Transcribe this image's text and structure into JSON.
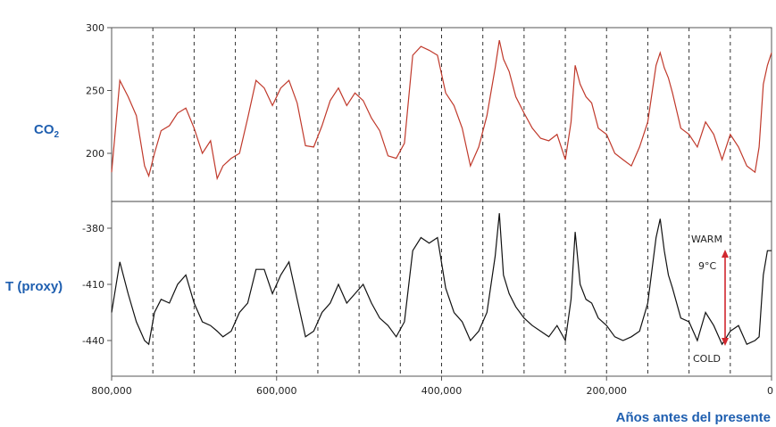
{
  "chart_data": [
    {
      "type": "line",
      "ylabel": "CO",
      "ylabel_sub": "2",
      "ylim": [
        170,
        300
      ],
      "yticks": [
        200,
        250,
        300
      ],
      "xlim": [
        800000,
        0
      ],
      "grid": "vertical dashed lines every 50,000 years",
      "color": "#c0392b",
      "series": [
        {
          "x": [
            800000,
            790000,
            780000,
            770000,
            760000,
            755000,
            748000,
            740000,
            730000,
            720000,
            710000,
            700000,
            690000,
            680000,
            672000,
            665000,
            655000,
            645000,
            635000,
            625000,
            615000,
            605000,
            595000,
            585000,
            575000,
            565000,
            555000,
            545000,
            535000,
            525000,
            515000,
            505000,
            495000,
            485000,
            475000,
            465000,
            455000,
            445000,
            435000,
            425000,
            415000,
            405000,
            395000,
            385000,
            375000,
            365000,
            355000,
            345000,
            335000,
            330000,
            325000,
            318000,
            310000,
            300000,
            290000,
            280000,
            270000,
            260000,
            250000,
            243000,
            238000,
            232000,
            225000,
            218000,
            210000,
            200000,
            190000,
            180000,
            170000,
            160000,
            150000,
            140000,
            135000,
            130000,
            125000,
            120000,
            110000,
            100000,
            90000,
            80000,
            70000,
            60000,
            50000,
            40000,
            30000,
            20000,
            15000,
            10000,
            5000,
            0
          ],
          "values": [
            185,
            258,
            245,
            230,
            190,
            182,
            200,
            218,
            222,
            232,
            236,
            220,
            200,
            210,
            180,
            190,
            196,
            200,
            228,
            258,
            252,
            238,
            252,
            258,
            240,
            206,
            205,
            222,
            242,
            252,
            238,
            248,
            242,
            228,
            218,
            198,
            196,
            208,
            278,
            285,
            282,
            278,
            248,
            238,
            220,
            190,
            205,
            230,
            268,
            290,
            275,
            265,
            245,
            232,
            220,
            212,
            210,
            215,
            195,
            225,
            270,
            255,
            245,
            240,
            220,
            215,
            200,
            195,
            190,
            205,
            225,
            270,
            280,
            268,
            260,
            248,
            220,
            215,
            205,
            225,
            215,
            195,
            215,
            205,
            190,
            185,
            205,
            255,
            270,
            280
          ]
        }
      ]
    },
    {
      "type": "line",
      "ylabel": "T (proxy)",
      "ylim": [
        -452,
        -370
      ],
      "yticks": [
        -380,
        -410,
        -440
      ],
      "xlim": [
        800000,
        0
      ],
      "xticks": [
        800000,
        600000,
        400000,
        200000,
        0
      ],
      "xtick_labels": [
        "800,000",
        "600,000",
        "400,000",
        "200,000",
        "0"
      ],
      "xlabel": "Años antes del presente",
      "color": "#111111",
      "annotations": {
        "warm": "WARM",
        "range": "9°C",
        "cold": "COLD"
      },
      "series": [
        {
          "x": [
            800000,
            790000,
            780000,
            770000,
            760000,
            755000,
            748000,
            740000,
            730000,
            720000,
            710000,
            700000,
            690000,
            680000,
            672000,
            665000,
            655000,
            645000,
            635000,
            625000,
            615000,
            605000,
            595000,
            585000,
            575000,
            565000,
            555000,
            545000,
            535000,
            525000,
            515000,
            505000,
            495000,
            485000,
            475000,
            465000,
            455000,
            445000,
            435000,
            425000,
            415000,
            405000,
            395000,
            385000,
            375000,
            365000,
            355000,
            345000,
            335000,
            330000,
            325000,
            318000,
            310000,
            300000,
            290000,
            280000,
            270000,
            260000,
            250000,
            243000,
            238000,
            232000,
            225000,
            218000,
            210000,
            200000,
            190000,
            180000,
            170000,
            160000,
            150000,
            140000,
            135000,
            130000,
            125000,
            120000,
            110000,
            100000,
            90000,
            80000,
            70000,
            60000,
            50000,
            40000,
            30000,
            20000,
            15000,
            10000,
            5000,
            0
          ],
          "values": [
            -425,
            -398,
            -415,
            -430,
            -440,
            -442,
            -425,
            -418,
            -420,
            -410,
            -405,
            -420,
            -430,
            -432,
            -435,
            -438,
            -435,
            -425,
            -420,
            -402,
            -402,
            -415,
            -405,
            -398,
            -418,
            -438,
            -435,
            -425,
            -420,
            -410,
            -420,
            -415,
            -410,
            -420,
            -428,
            -432,
            -438,
            -430,
            -392,
            -385,
            -388,
            -385,
            -412,
            -425,
            -430,
            -440,
            -435,
            -425,
            -395,
            -372,
            -405,
            -415,
            -422,
            -428,
            -432,
            -435,
            -438,
            -432,
            -440,
            -418,
            -382,
            -410,
            -418,
            -420,
            -428,
            -432,
            -438,
            -440,
            -438,
            -435,
            -420,
            -385,
            -375,
            -392,
            -405,
            -412,
            -428,
            -430,
            -440,
            -425,
            -432,
            -442,
            -435,
            -432,
            -442,
            -440,
            -438,
            -405,
            -392,
            -392
          ]
        }
      ]
    }
  ]
}
